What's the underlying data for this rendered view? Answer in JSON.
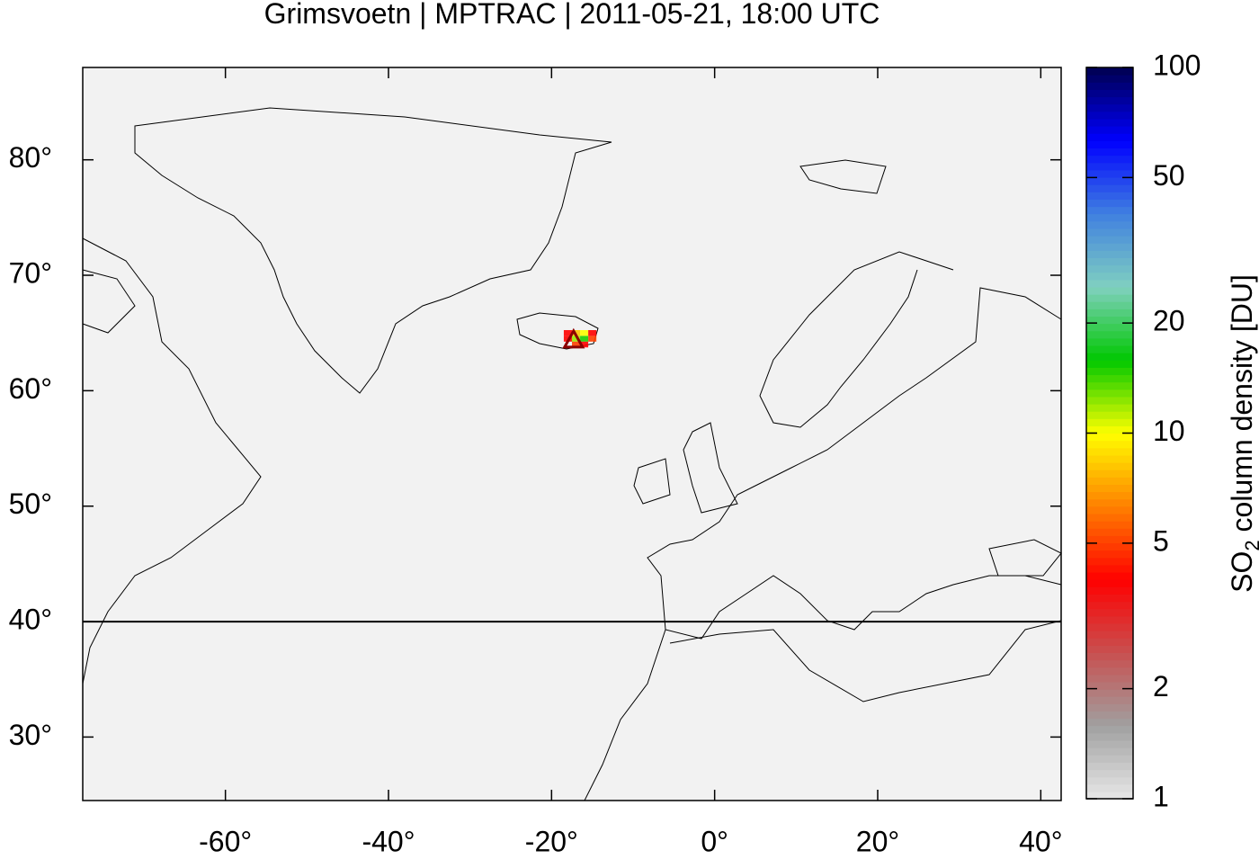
{
  "chart_data": {
    "type": "map",
    "title": "Grimsvoetn | MPTRAC | 2011-05-21, 18:00 UTC",
    "xlim": [
      -77.5,
      42.5
    ],
    "ylim": [
      24.5,
      88
    ],
    "xticks": [
      {
        "value": -60,
        "label": "-60°"
      },
      {
        "value": -40,
        "label": "-40°"
      },
      {
        "value": -20,
        "label": "-20°"
      },
      {
        "value": 0,
        "label": "0°"
      },
      {
        "value": 20,
        "label": "20°"
      },
      {
        "value": 40,
        "label": "40°"
      }
    ],
    "yticks": [
      {
        "value": 30,
        "label": "30°"
      },
      {
        "value": 40,
        "label": "40°"
      },
      {
        "value": 50,
        "label": "50°"
      },
      {
        "value": 60,
        "label": "60°"
      },
      {
        "value": 70,
        "label": "70°"
      },
      {
        "value": 80,
        "label": "80°"
      }
    ],
    "hline": 40,
    "volcano": {
      "lon": -17.3,
      "lat": 64.4
    },
    "plume": {
      "lon": [
        -18,
        -17,
        -16,
        -15,
        -18,
        -17,
        -16,
        -15,
        -17,
        -16
      ],
      "lat": [
        64.5,
        64.5,
        64.5,
        64.5,
        65,
        65,
        65,
        65,
        64,
        64
      ],
      "values": [
        4,
        12,
        15,
        5,
        4,
        8,
        10,
        4,
        5,
        4
      ]
    },
    "colorbar": {
      "label_main": "SO",
      "label_sub": "2",
      "label_rest": " column density [DU]",
      "clim": [
        1,
        100
      ],
      "log": true,
      "ticks": [
        1,
        2,
        5,
        10,
        20,
        50,
        100
      ],
      "colors": [
        "#e8e8e8",
        "#a0a0a0",
        "#c85050",
        "#ff0000",
        "#ff8000",
        "#ffff00",
        "#00c800",
        "#80d0c0",
        "#4080e0",
        "#0000ff",
        "#000050"
      ]
    }
  }
}
